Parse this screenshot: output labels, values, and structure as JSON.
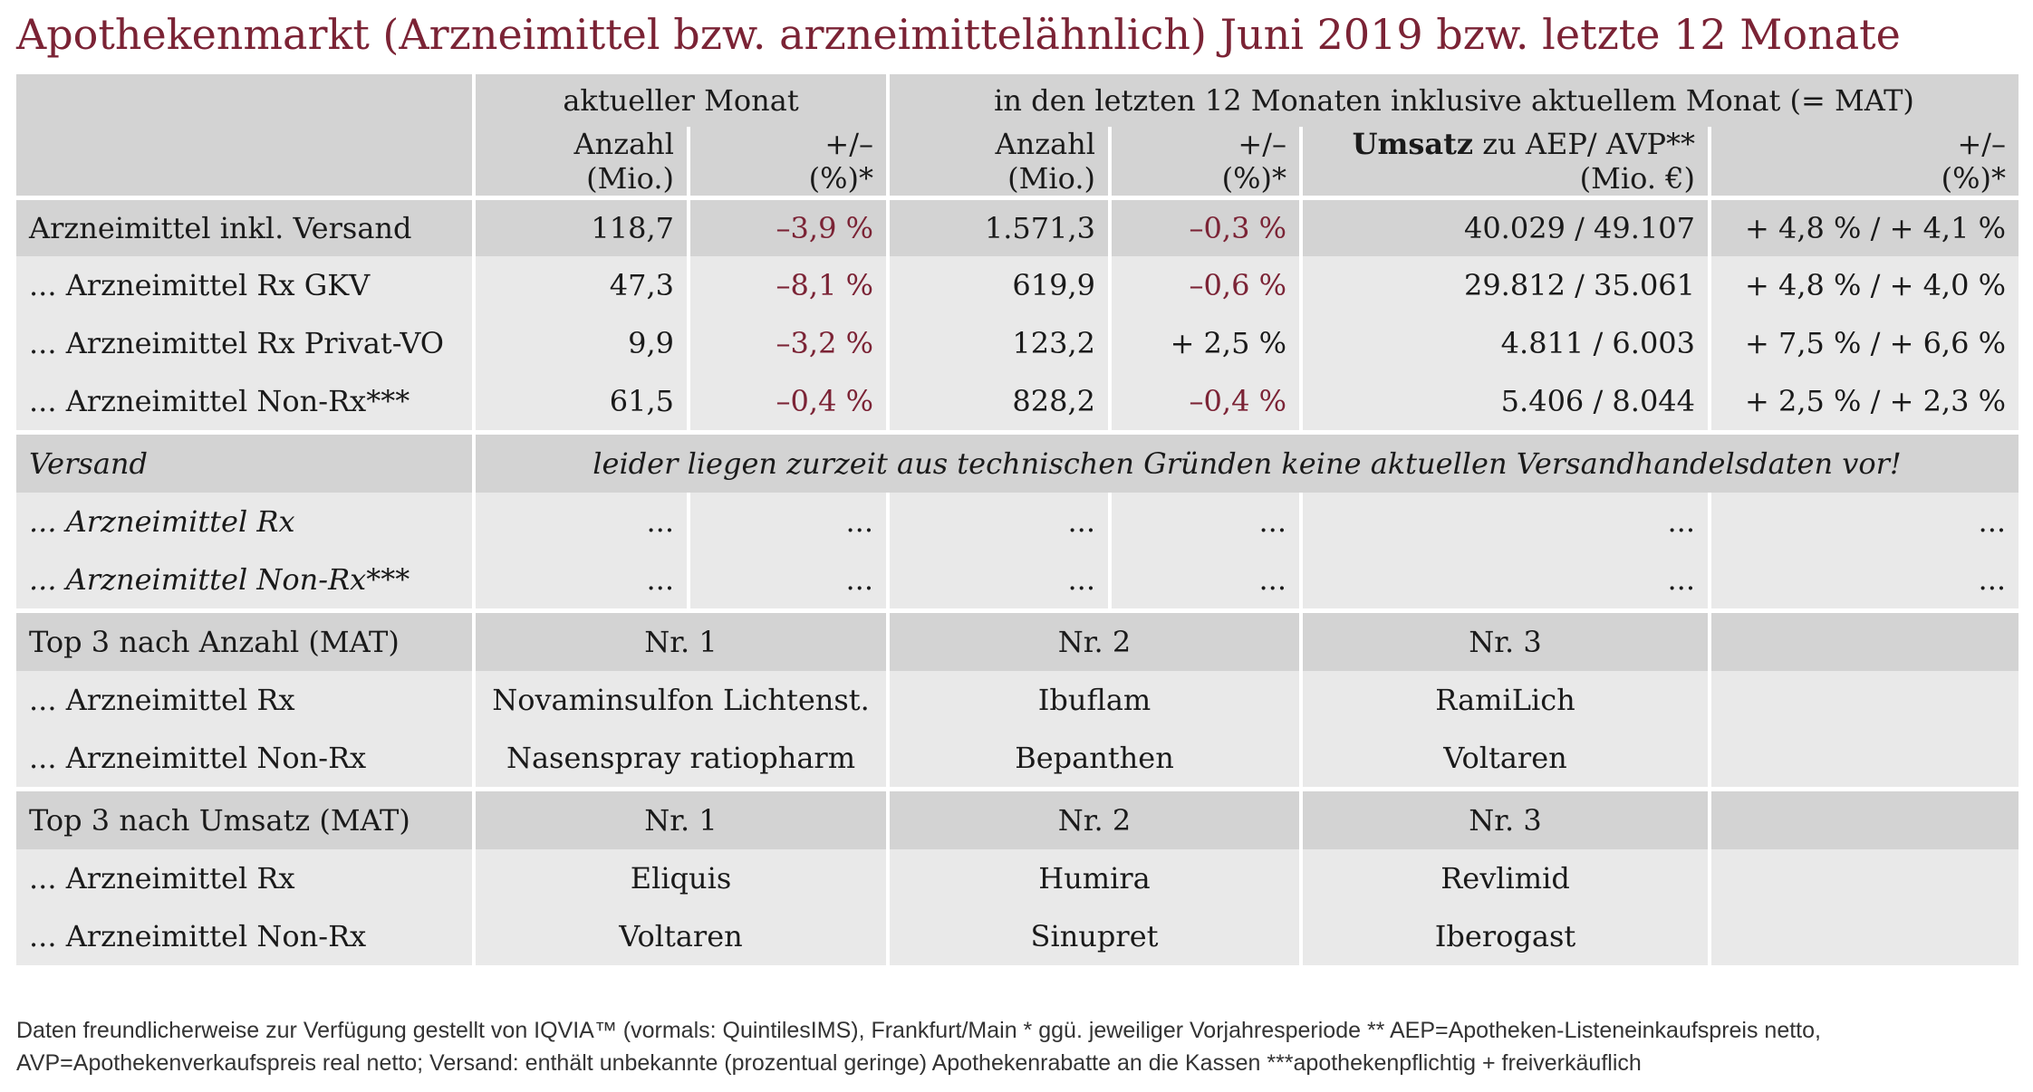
{
  "title": "Apothekenmarkt (Arzneimittel bzw. arzneimittelähnlich) Juni 2019 bzw. letzte 12 Monate",
  "header": {
    "group_current": "aktueller Monat",
    "group_mat": "in den letzten 12 Monaten inklusive aktuellem Monat (= MAT)",
    "anzahl": "Anzahl",
    "mio": "(Mio.)",
    "plusminus": "+/–",
    "pct_star": "(%)*",
    "umsatz_bold": "Umsatz",
    "umsatz_rest": " zu AEP/ AVP**",
    "mio_eur": "(Mio. €)"
  },
  "rows": [
    {
      "label": "Arzneimittel inkl. Versand",
      "anzahl_m": "118,7",
      "pct_m": "–3,9 %",
      "anzahl_mat": "1.571,3",
      "pct_mat": "–0,3 %",
      "umsatz": "40.029 / 49.107",
      "pct_umsatz": "+ 4,8 % / + 4,1 %"
    },
    {
      "label": "... Arzneimittel Rx GKV",
      "anzahl_m": "47,3",
      "pct_m": "–8,1 %",
      "anzahl_mat": "619,9",
      "pct_mat": "–0,6 %",
      "umsatz": "29.812 / 35.061",
      "pct_umsatz": "+ 4,8 % / + 4,0 %"
    },
    {
      "label": "... Arzneimittel Rx Privat-VO",
      "anzahl_m": "9,9",
      "pct_m": "–3,2 %",
      "anzahl_mat": "123,2",
      "pct_mat": "+ 2,5 %",
      "umsatz": "4.811 / 6.003",
      "pct_umsatz": "+ 7,5 % / + 6,6 %"
    },
    {
      "label": "... Arzneimittel Non-Rx***",
      "anzahl_m": "61,5",
      "pct_m": "–0,4 %",
      "anzahl_mat": "828,2",
      "pct_mat": "–0,4 %",
      "umsatz": "5.406 / 8.044",
      "pct_umsatz": "+ 2,5 % / + 2,3 %"
    }
  ],
  "versand": {
    "label": "Versand",
    "note": "leider liegen zurzeit aus technischen Gründen keine aktuellen Versandhandelsdaten vor!",
    "rows": [
      {
        "label": "... Arzneimittel Rx",
        "values": [
          "...",
          "...",
          "...",
          "...",
          "...",
          "..."
        ]
      },
      {
        "label": "... Arzneimittel Non-Rx***",
        "values": [
          "...",
          "...",
          "...",
          "...",
          "...",
          "..."
        ]
      }
    ]
  },
  "top_anzahl": {
    "label": "Top 3 nach Anzahl (MAT)",
    "nr1": "Nr. 1",
    "nr2": "Nr. 2",
    "nr3": "Nr. 3",
    "rows": [
      {
        "label": "... Arzneimittel Rx",
        "v1": "Novaminsulfon Lichtenst.",
        "v2": "Ibuflam",
        "v3": "RamiLich"
      },
      {
        "label": "... Arzneimittel Non-Rx",
        "v1": "Nasenspray ratiopharm",
        "v2": "Bepanthen",
        "v3": "Voltaren"
      }
    ]
  },
  "top_umsatz": {
    "label": "Top 3 nach Umsatz (MAT)",
    "nr1": "Nr. 1",
    "nr2": "Nr. 2",
    "nr3": "Nr. 3",
    "rows": [
      {
        "label": "... Arzneimittel Rx",
        "v1": "Eliquis",
        "v2": "Humira",
        "v3": "Revlimid"
      },
      {
        "label": "... Arzneimittel Non-Rx",
        "v1": "Voltaren",
        "v2": "Sinupret",
        "v3": "Iberogast"
      }
    ]
  },
  "footer": {
    "line1": "Daten freundlicherweise zur Verfügung gestellt von IQVIA™ (vormals: QuintilesIMS), Frankfurt/Main  * ggü. jeweiliger Vorjahresperiode  ** AEP=Apotheken-Listeneinkaufspreis netto,",
    "line2": "AVP=Apothekenverkaufspreis real netto; Versand: enthält unbekannte (prozentual geringe) Apothekenrabatte an die Kassen   ***apothekenpflichtig + freiverkäuflich"
  },
  "colors": {
    "accent": "#7b2335",
    "header_bg": "#d3d3d3",
    "row_bg": "#e9e9e9"
  }
}
